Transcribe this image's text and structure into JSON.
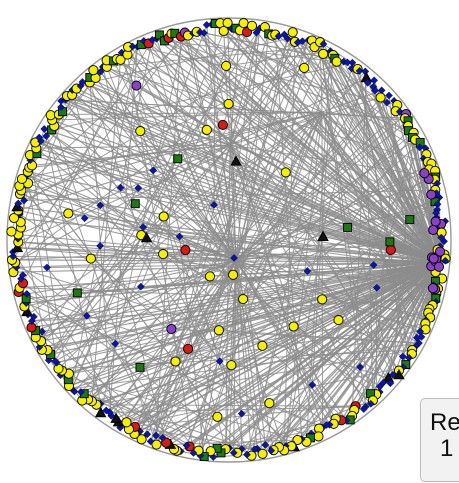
{
  "network": {
    "layout": "circular",
    "edge_color": "#8c8c8c",
    "node_outline_color": "#000000",
    "node_types": [
      {
        "shape": "circle",
        "color": "#f5f000",
        "name": "yellow-circle-node"
      },
      {
        "shape": "diamond",
        "color": "#0b16a8",
        "name": "blue-diamond-node"
      },
      {
        "shape": "square",
        "color": "#1e7a10",
        "name": "green-square-node"
      },
      {
        "shape": "circle",
        "color": "#d81b14",
        "name": "red-circle-node"
      },
      {
        "shape": "circle",
        "color": "#8a40c8",
        "name": "purple-circle-node"
      },
      {
        "shape": "triangle",
        "color": "#111111",
        "name": "black-triangle-node"
      }
    ]
  },
  "legend": {
    "line1": "Re",
    "line2": "1"
  }
}
